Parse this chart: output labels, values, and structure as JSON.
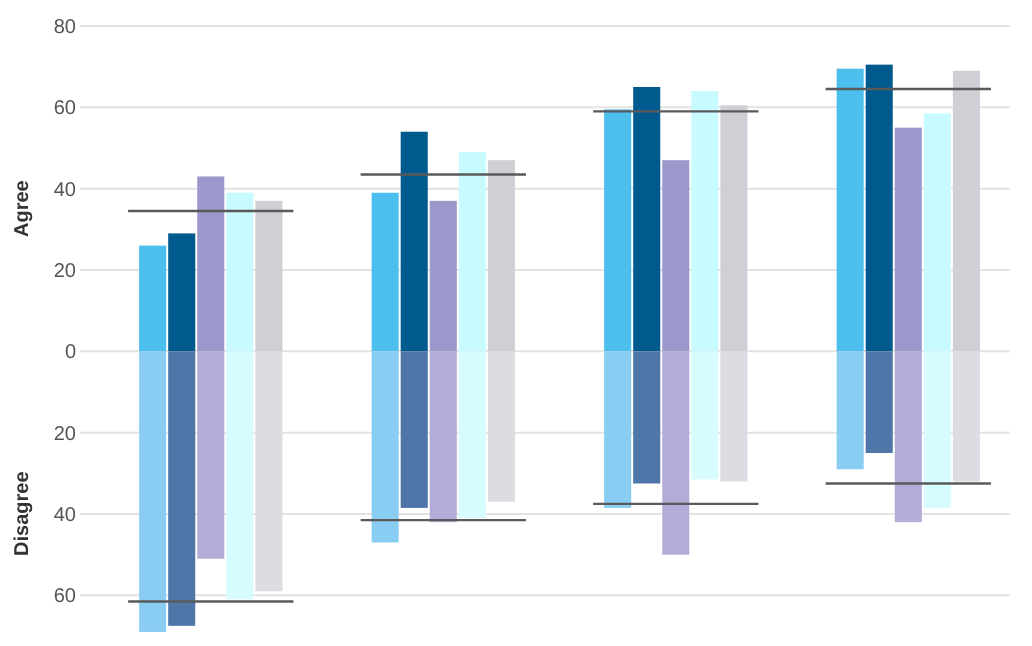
{
  "chart_data": {
    "type": "bar",
    "ylabel": "Agree",
    "annotations": [
      "Disagree"
    ],
    "stacked": true,
    "grid": "y",
    "categories": [
      null,
      null,
      null,
      null,
      null,
      null,
      null,
      null,
      null,
      null,
      null,
      null,
      null,
      null,
      null,
      null,
      null,
      null,
      null,
      null,
      null,
      null,
      null,
      null,
      null,
      null,
      null,
      null,
      null,
      null,
      null,
      null
    ],
    "ylim": [
      -70,
      80
    ],
    "yticks": [
      {
        "value": -60,
        "label": "60"
      },
      {
        "value": -40,
        "label": "40"
      },
      {
        "value": -20,
        "label": "20"
      },
      0,
      20,
      40,
      60,
      80
    ],
    "series": [
      {
        "values": [
          null,
          null,
          26,
          29,
          43,
          39,
          37,
          null,
          null,
          null,
          39,
          54,
          37,
          49,
          47,
          null,
          null,
          null,
          59.5,
          65,
          47,
          64,
          60.5,
          null,
          null,
          null,
          69.5,
          70.5,
          55,
          58.5,
          69,
          null
        ],
        "colors": [
          null,
          null,
          "#4dbfef",
          "#005a8e",
          "#9b98cb",
          "#c8fbff",
          "#cfd0d6",
          null,
          null,
          null,
          "#4dbfef",
          "#005a8e",
          "#9b98cb",
          "#c8fbff",
          "#cfd0d6",
          null,
          null,
          null,
          "#4dbfef",
          "#005a8e",
          "#9b98cb",
          "#c8fbff",
          "#cfd0d6",
          null,
          null,
          null,
          "#4dbfef",
          "#005a8e",
          "#9b98cb",
          "#c8fbff",
          "#cfd0d6",
          null
        ]
      },
      {
        "values": [
          null,
          null,
          -69,
          -67.5,
          -51,
          -61,
          -59,
          null,
          null,
          null,
          -47,
          -38.5,
          -42,
          -41,
          -37,
          null,
          null,
          null,
          -38.5,
          -32.5,
          -50,
          -31.5,
          -32,
          null,
          null,
          null,
          -29,
          -25,
          -42,
          -38.5,
          -32,
          null
        ],
        "colors": [
          null,
          null,
          "#8acdf2",
          "#4f76a8",
          "#b2add8",
          "#d6fcff",
          "#dcdde2",
          null,
          null,
          null,
          "#8acdf2",
          "#4f76a8",
          "#b2add8",
          "#d6fcff",
          "#dcdde2",
          null,
          null,
          null,
          "#8acdf2",
          "#4f76a8",
          "#b2add8",
          "#d6fcff",
          "#dcdde2",
          null,
          null,
          null,
          "#8acdf2",
          "#4f76a8",
          "#b2add8",
          "#d6fcff",
          "#dcdde2",
          null
        ]
      }
    ],
    "ref_lines": [
      {
        "axis": "y",
        "value": 34.5,
        "color": "#5a5a5a"
      },
      {
        "axis": "y",
        "value": -61.5,
        "color": "#5a5a5a"
      },
      {
        "axis": "y",
        "value": 43.5,
        "color": "#5a5a5a"
      },
      {
        "axis": "y",
        "value": -41.5,
        "color": "#5a5a5a"
      },
      {
        "axis": "y",
        "value": 59,
        "color": "#5a5a5a"
      },
      {
        "axis": "y",
        "value": -37.5,
        "color": "#5a5a5a"
      },
      {
        "axis": "y",
        "value": 64.5,
        "color": "#5a5a5a"
      },
      {
        "axis": "y",
        "value": -32.5,
        "color": "#5a5a5a"
      }
    ]
  }
}
